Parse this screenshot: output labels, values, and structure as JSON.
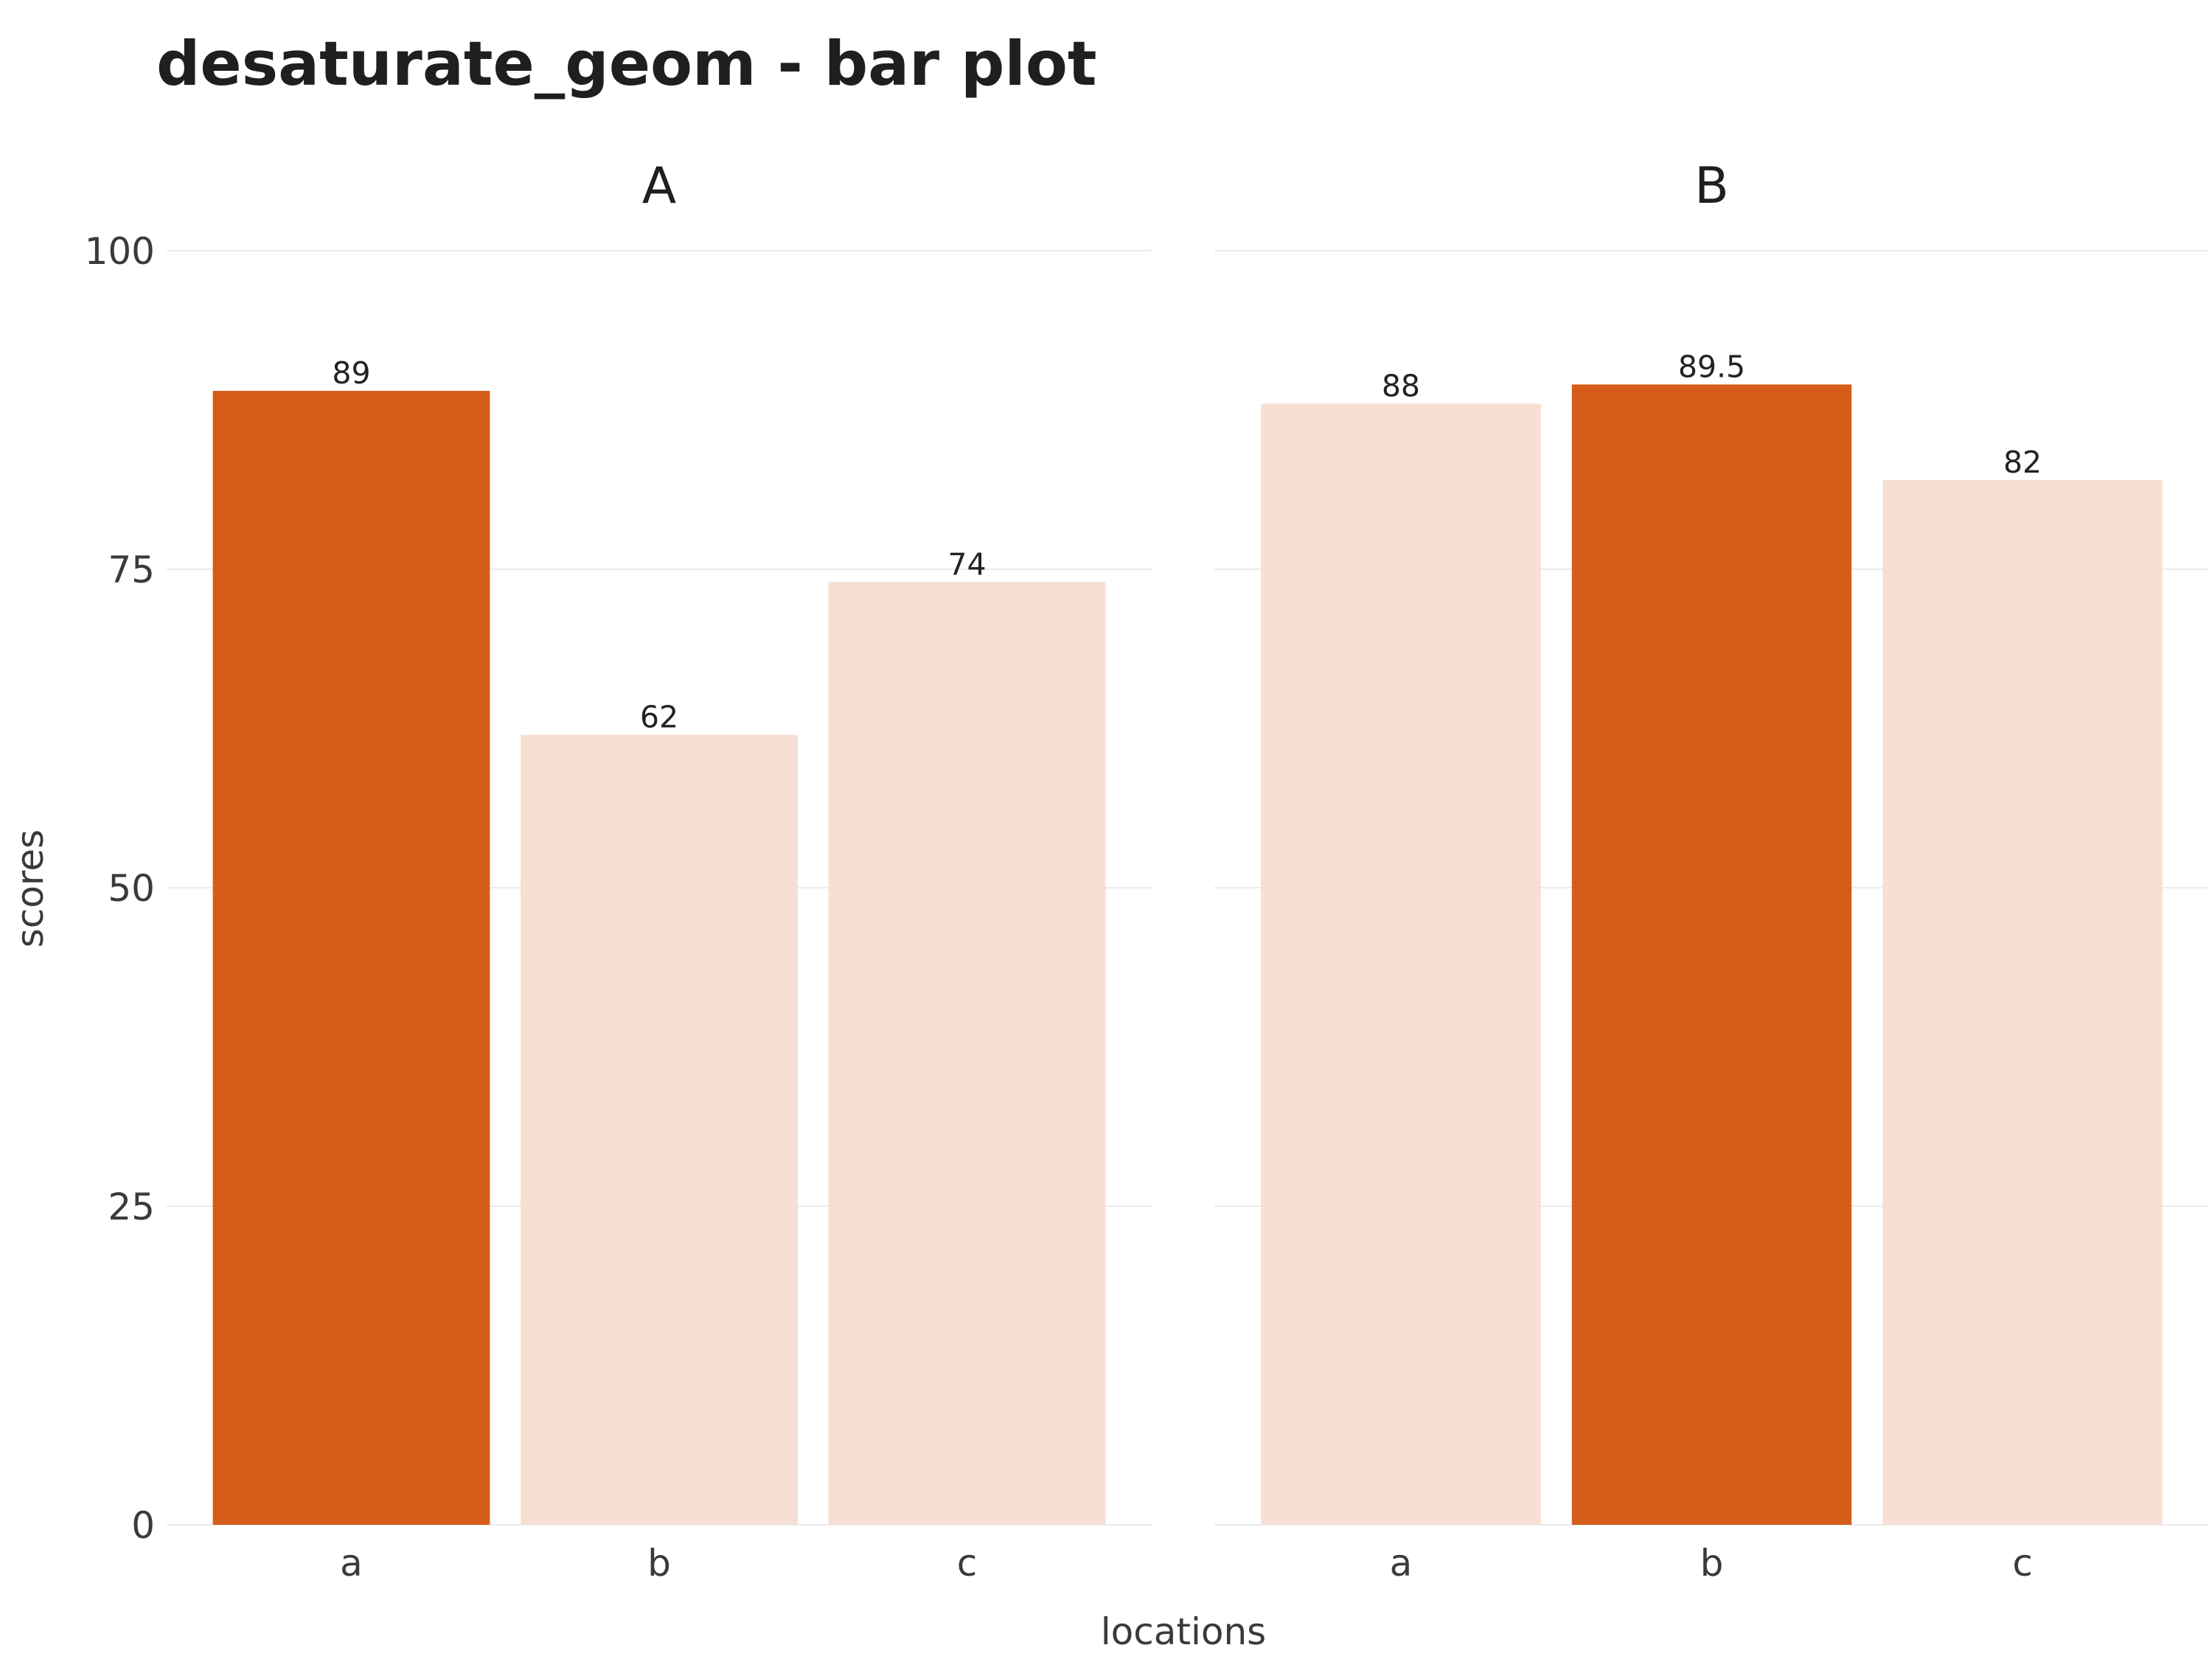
{
  "chart_data": {
    "type": "bar",
    "title": "desaturate_geom - bar plot",
    "xlabel": "locations",
    "ylabel": "scores",
    "ylim": [
      0,
      100
    ],
    "yticks": [
      "0",
      "25",
      "50",
      "75",
      "100"
    ],
    "grid": true,
    "legend": "none",
    "categories": [
      "a",
      "b",
      "c"
    ],
    "panels": [
      {
        "name": "A",
        "values": [
          89,
          62,
          74
        ],
        "value_labels": [
          "89",
          "62",
          "74"
        ],
        "highlighted": "a"
      },
      {
        "name": "B",
        "values": [
          88,
          89.5,
          82
        ],
        "value_labels": [
          "88",
          "89.5",
          "82"
        ],
        "highlighted": "b"
      }
    ],
    "colors": {
      "highlight": "#d55c19",
      "muted": "#f6dfd3",
      "grid": "#ebebeb"
    }
  }
}
